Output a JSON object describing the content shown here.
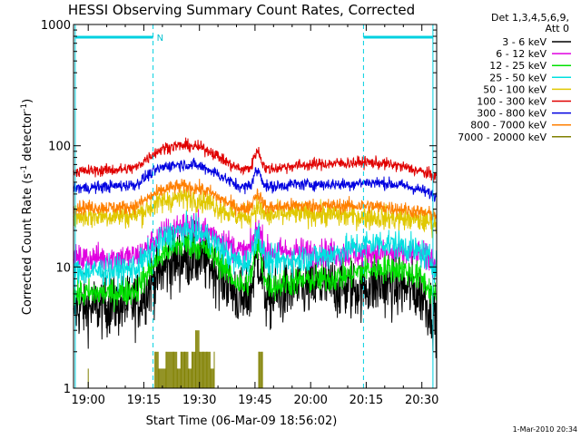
{
  "chart_data": {
    "type": "line",
    "title": "HESSI Observing Summary Count Rates, Corrected",
    "xlabel": "Start Time (06-Mar-09 18:56:02)",
    "ylabel_parts": {
      "main": "Corrected Count Rate (s",
      "exp1": "-1",
      "mid": " detector",
      "exp2": "-1",
      "close": ")"
    },
    "yscale": "log",
    "ylim": [
      1,
      1000
    ],
    "xlim": [
      "18:56:02",
      "20:34:00"
    ],
    "x_ticks": [
      "19:00",
      "19:15",
      "19:30",
      "19:45",
      "20:00",
      "20:15",
      "20:30"
    ],
    "y_ticks": [
      "1",
      "10",
      "100",
      "1000"
    ],
    "legend_header": [
      "Det 1,3,4,5,6,9,",
      "Att 0"
    ],
    "series": [
      {
        "name": "3 - 6 keV",
        "color": "#000000",
        "x": [
          "18:56",
          "19:00",
          "19:05",
          "19:10",
          "19:13",
          "19:15",
          "19:18",
          "19:21",
          "19:24",
          "19:27",
          "19:30",
          "19:33",
          "19:36",
          "19:39",
          "19:42",
          "19:44",
          "19:45",
          "19:46",
          "19:47",
          "19:48",
          "19:50",
          "19:55",
          "20:00",
          "20:05",
          "20:10",
          "20:15",
          "20:20",
          "20:25",
          "20:30",
          "20:34"
        ],
        "y": [
          4.5,
          4.6,
          4.8,
          4.8,
          5.0,
          6.0,
          8.0,
          10.0,
          11.5,
          12.0,
          11.5,
          10.5,
          8.5,
          6.5,
          5.0,
          6.5,
          10.5,
          11.5,
          8.0,
          5.5,
          5.5,
          6.5,
          6.8,
          7.0,
          6.5,
          7.0,
          7.0,
          6.8,
          6.0,
          3.6
        ],
        "noise": 0.13
      },
      {
        "name": "6 - 12 keV",
        "color": "#e000e0",
        "x": [
          "18:56",
          "19:00",
          "19:05",
          "19:10",
          "19:13",
          "19:15",
          "19:18",
          "19:21",
          "19:24",
          "19:27",
          "19:30",
          "19:33",
          "19:36",
          "19:39",
          "19:42",
          "19:44",
          "19:45",
          "19:46",
          "19:47",
          "19:48",
          "19:50",
          "19:55",
          "20:00",
          "20:05",
          "20:10",
          "20:15",
          "20:20",
          "20:25",
          "20:30",
          "20:34"
        ],
        "y": [
          11.5,
          11.8,
          12.0,
          12.0,
          12.2,
          13.5,
          16.5,
          19.5,
          21.5,
          22.0,
          21.0,
          19.5,
          17.0,
          14.5,
          13.0,
          14.5,
          19.0,
          20.5,
          16.5,
          13.5,
          13.2,
          13.5,
          13.2,
          13.0,
          12.8,
          13.0,
          12.8,
          12.8,
          12.5,
          11.0
        ],
        "noise": 0.06
      },
      {
        "name": "12 - 25 keV",
        "color": "#00e000",
        "x": [
          "18:56",
          "19:00",
          "19:05",
          "19:10",
          "19:13",
          "19:15",
          "19:18",
          "19:21",
          "19:24",
          "19:27",
          "19:30",
          "19:33",
          "19:36",
          "19:39",
          "19:42",
          "19:44",
          "19:45",
          "19:46",
          "19:47",
          "19:48",
          "19:50",
          "19:55",
          "20:00",
          "20:05",
          "20:10",
          "20:15",
          "20:20",
          "20:25",
          "20:30",
          "20:34"
        ],
        "y": [
          6.0,
          6.0,
          6.1,
          6.2,
          6.5,
          8.0,
          11.0,
          13.5,
          15.0,
          15.5,
          14.8,
          13.0,
          10.5,
          8.0,
          6.8,
          8.5,
          13.5,
          14.5,
          10.0,
          7.2,
          7.0,
          7.5,
          7.8,
          8.0,
          8.5,
          9.5,
          9.8,
          9.5,
          8.0,
          5.5
        ],
        "noise": 0.06
      },
      {
        "name": "25 - 50 keV",
        "color": "#00e0e0",
        "x": [
          "18:56",
          "19:00",
          "19:05",
          "19:10",
          "19:13",
          "19:15",
          "19:18",
          "19:21",
          "19:24",
          "19:27",
          "19:30",
          "19:33",
          "19:36",
          "19:39",
          "19:42",
          "19:44",
          "19:45",
          "19:46",
          "19:47",
          "19:48",
          "19:50",
          "19:55",
          "20:00",
          "20:05",
          "20:10",
          "20:15",
          "20:20",
          "20:25",
          "20:30",
          "20:34"
        ],
        "y": [
          9.0,
          9.2,
          9.3,
          9.5,
          9.8,
          11.5,
          14.5,
          17.5,
          19.5,
          20.0,
          19.0,
          17.0,
          14.0,
          11.5,
          10.5,
          12.0,
          17.5,
          19.0,
          14.0,
          11.0,
          11.0,
          11.5,
          12.0,
          12.5,
          14.0,
          15.5,
          15.8,
          15.0,
          13.0,
          10.0
        ],
        "noise": 0.06
      },
      {
        "name": "50 - 100 keV",
        "color": "#e0c800",
        "x": [
          "18:56",
          "19:00",
          "19:05",
          "19:10",
          "19:13",
          "19:15",
          "19:18",
          "19:21",
          "19:24",
          "19:27",
          "19:30",
          "19:33",
          "19:36",
          "19:39",
          "19:42",
          "19:44",
          "19:45",
          "19:46",
          "19:47",
          "19:48",
          "19:50",
          "19:55",
          "20:00",
          "20:05",
          "20:10",
          "20:15",
          "20:20",
          "20:25",
          "20:30",
          "20:34"
        ],
        "y": [
          26.0,
          26.0,
          26.5,
          26.5,
          27.0,
          29.0,
          32.5,
          35.5,
          37.0,
          37.5,
          36.0,
          33.5,
          30.0,
          27.0,
          25.5,
          27.0,
          30.5,
          31.0,
          28.0,
          26.5,
          26.5,
          27.5,
          27.5,
          27.0,
          26.5,
          26.0,
          25.5,
          25.0,
          24.0,
          23.0
        ],
        "noise": 0.05
      },
      {
        "name": "100 - 300 keV",
        "color": "#e00000",
        "x": [
          "18:56",
          "19:00",
          "19:05",
          "19:10",
          "19:13",
          "19:15",
          "19:18",
          "19:21",
          "19:24",
          "19:27",
          "19:30",
          "19:33",
          "19:36",
          "19:39",
          "19:42",
          "19:44",
          "19:45",
          "19:46",
          "19:47",
          "19:48",
          "19:50",
          "19:55",
          "20:00",
          "20:05",
          "20:10",
          "20:15",
          "20:20",
          "20:25",
          "20:30",
          "20:34"
        ],
        "y": [
          61,
          62,
          63,
          64,
          66,
          75,
          88,
          97,
          100,
          100,
          97,
          90,
          78,
          68,
          63,
          67,
          86,
          90,
          72,
          64,
          65,
          68,
          70,
          71,
          72,
          73,
          71,
          67,
          61,
          55
        ],
        "noise": 0.025
      },
      {
        "name": "300 - 800 keV",
        "color": "#0000e0",
        "x": [
          "18:56",
          "19:00",
          "19:05",
          "19:10",
          "19:13",
          "19:15",
          "19:18",
          "19:21",
          "19:24",
          "19:27",
          "19:30",
          "19:33",
          "19:36",
          "19:39",
          "19:42",
          "19:44",
          "19:45",
          "19:46",
          "19:47",
          "19:48",
          "19:50",
          "19:55",
          "20:00",
          "20:05",
          "20:10",
          "20:15",
          "20:20",
          "20:25",
          "20:30",
          "20:34"
        ],
        "y": [
          45,
          45,
          46,
          47,
          48,
          54,
          62,
          68,
          70,
          70,
          68,
          63,
          56,
          49,
          45,
          48,
          60,
          62,
          52,
          46,
          46,
          48,
          48,
          48,
          48,
          50,
          49,
          47,
          43,
          38
        ],
        "noise": 0.025
      },
      {
        "name": "800 - 7000 keV",
        "color": "#ff7f00",
        "x": [
          "18:56",
          "19:00",
          "19:05",
          "19:10",
          "19:13",
          "19:15",
          "19:18",
          "19:21",
          "19:24",
          "19:27",
          "19:30",
          "19:33",
          "19:36",
          "19:39",
          "19:42",
          "19:44",
          "19:45",
          "19:46",
          "19:47",
          "19:48",
          "19:50",
          "19:55",
          "20:00",
          "20:05",
          "20:10",
          "20:15",
          "20:20",
          "20:25",
          "20:30",
          "20:34"
        ],
        "y": [
          31,
          31,
          31,
          31,
          32,
          35,
          40,
          44,
          46,
          46,
          44,
          41,
          36,
          32,
          30,
          32,
          39,
          40,
          34,
          31,
          31,
          32,
          32,
          32,
          32,
          32,
          31,
          30,
          28,
          27
        ],
        "noise": 0.03
      },
      {
        "name": "7000 - 20000 keV",
        "color": "#808000",
        "x": [
          "19:00",
          "19:18",
          "19:19",
          "19:21",
          "19:23",
          "19:24",
          "19:25",
          "19:26",
          "19:27",
          "19:28",
          "19:29",
          "19:30",
          "19:31",
          "19:32",
          "19:33",
          "19:34",
          "19:46",
          "19:47"
        ],
        "y": [
          1.45,
          2.0,
          1.45,
          2.0,
          2.0,
          1.45,
          2.0,
          2.0,
          1.45,
          2.0,
          3.0,
          2.0,
          2.0,
          2.0,
          1.45,
          2.0,
          2.0,
          2.0
        ],
        "bars": true
      }
    ],
    "saa_lines": [
      "19:17:30",
      "20:14:15"
    ],
    "night_lines": [
      "18:56:30",
      "20:33:00"
    ],
    "night_markers": [
      {
        "from": "18:56:30",
        "to": "19:17:30",
        "label": "N"
      },
      {
        "from": "20:14:15",
        "to": "20:33:00",
        "label": ""
      }
    ],
    "grid": false,
    "legend_position": "right-outside"
  },
  "timestamp": "1-Mar-2010 20:34"
}
